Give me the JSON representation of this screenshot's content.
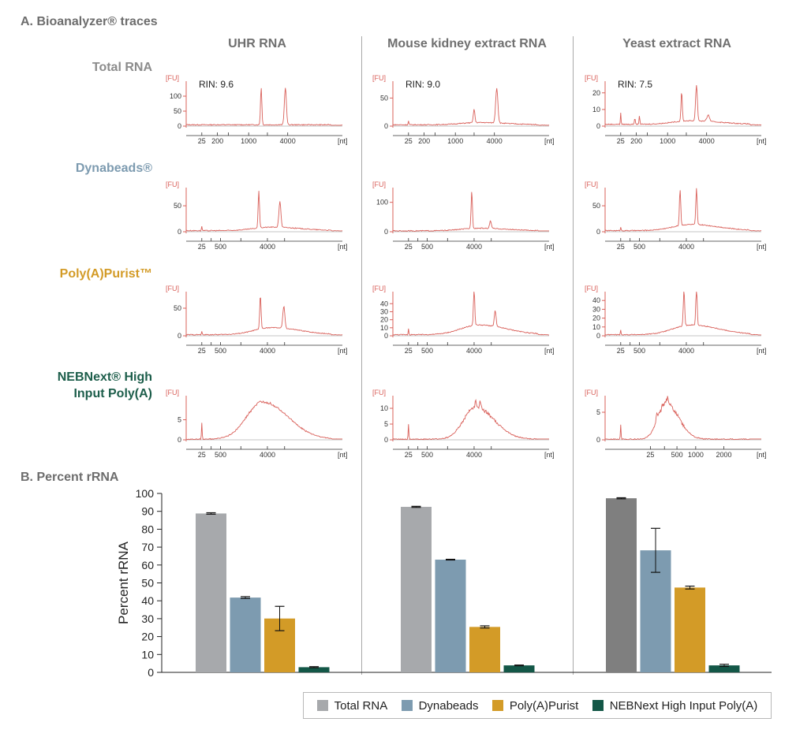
{
  "section_a_title": "A. Bioanalyzer® traces",
  "section_b_title": "B. Percent rRNA",
  "columns": [
    "UHR RNA",
    "Mouse kidney extract RNA",
    "Yeast extract RNA"
  ],
  "rows": [
    {
      "label": "Total RNA",
      "color": "#8c8c8c"
    },
    {
      "label": "Dynabeads®",
      "color": "#7d9bb0"
    },
    {
      "label": "Poly(A)Purist™",
      "color": "#d39b27"
    },
    {
      "label_lines": [
        "NEBNext® High",
        "Input Poly(A)"
      ],
      "color": "#1d5e4b"
    }
  ],
  "chart_data": [
    {
      "type": "line",
      "panel": "A",
      "ylabel_unit": "[FU]",
      "xlabel_unit": "[nt]",
      "trace_color": "#d9605a",
      "traces": [
        {
          "row": 0,
          "col": 0,
          "rin": "RIN: 9.6",
          "yticks": [
            0,
            50,
            100
          ],
          "ymax": 150,
          "xticks": [
            "25",
            "200",
            "",
            "1000",
            "",
            "4000"
          ],
          "xtick_pos": [
            0.1,
            0.2,
            0.27,
            0.4,
            0.52,
            0.65
          ],
          "peaks": [
            {
              "x": 0.48,
              "h": 0.83,
              "w": 0.006
            },
            {
              "x": 0.635,
              "h": 0.83,
              "w": 0.009
            }
          ],
          "baseline": 0.06,
          "hump": 0
        },
        {
          "row": 0,
          "col": 1,
          "rin": "RIN: 9.0",
          "yticks": [
            0,
            50
          ],
          "ymax": 80,
          "xticks": [
            "25",
            "200",
            "",
            "1000",
            "",
            "4000"
          ],
          "xtick_pos": [
            0.1,
            0.2,
            0.27,
            0.4,
            0.52,
            0.65
          ],
          "peaks": [
            {
              "x": 0.1,
              "h": 0.09,
              "w": 0.003
            },
            {
              "x": 0.52,
              "h": 0.3,
              "w": 0.007
            },
            {
              "x": 0.665,
              "h": 0.78,
              "w": 0.01
            }
          ],
          "baseline": 0.06,
          "hump": 0.05
        },
        {
          "row": 0,
          "col": 2,
          "rin": "RIN: 7.5",
          "yticks": [
            0,
            10,
            20
          ],
          "ymax": 27,
          "xticks": [
            "25",
            "200",
            "",
            "1000",
            "",
            "4000"
          ],
          "xtick_pos": [
            0.1,
            0.2,
            0.27,
            0.4,
            0.52,
            0.65
          ],
          "peaks": [
            {
              "x": 0.1,
              "h": 0.25,
              "w": 0.003
            },
            {
              "x": 0.19,
              "h": 0.14,
              "w": 0.004
            },
            {
              "x": 0.22,
              "h": 0.18,
              "w": 0.004
            },
            {
              "x": 0.49,
              "h": 0.65,
              "w": 0.006
            },
            {
              "x": 0.585,
              "h": 0.8,
              "w": 0.008
            },
            {
              "x": 0.66,
              "h": 0.14,
              "w": 0.012
            }
          ],
          "baseline": 0.08,
          "hump": 0.08
        },
        {
          "row": 1,
          "col": 0,
          "rin": "",
          "yticks": [
            0,
            50
          ],
          "ymax": 85,
          "xticks": [
            "25",
            "",
            "500",
            "",
            "4000",
            ""
          ],
          "xtick_pos": [
            0.1,
            0.16,
            0.22,
            0.35,
            0.52,
            0.63
          ],
          "peaks": [
            {
              "x": 0.1,
              "h": 0.1,
              "w": 0.003
            },
            {
              "x": 0.465,
              "h": 0.85,
              "w": 0.006
            },
            {
              "x": 0.6,
              "h": 0.58,
              "w": 0.009
            }
          ],
          "baseline": 0.05,
          "hump": 0.08
        },
        {
          "row": 1,
          "col": 1,
          "rin": "",
          "yticks": [
            0,
            100
          ],
          "ymax": 150,
          "xticks": [
            "25",
            "",
            "500",
            "",
            "4000",
            ""
          ],
          "xtick_pos": [
            0.1,
            0.16,
            0.22,
            0.35,
            0.52,
            0.63
          ],
          "peaks": [
            {
              "x": 0.505,
              "h": 0.85,
              "w": 0.006
            },
            {
              "x": 0.625,
              "h": 0.17,
              "w": 0.008
            }
          ],
          "baseline": 0.04,
          "hump": 0.06
        },
        {
          "row": 1,
          "col": 2,
          "rin": "",
          "yticks": [
            0,
            50
          ],
          "ymax": 85,
          "xticks": [
            "25",
            "",
            "500",
            "",
            "4000",
            ""
          ],
          "xtick_pos": [
            0.1,
            0.16,
            0.22,
            0.35,
            0.52,
            0.63
          ],
          "peaks": [
            {
              "x": 0.1,
              "h": 0.08,
              "w": 0.003
            },
            {
              "x": 0.48,
              "h": 0.82,
              "w": 0.006
            },
            {
              "x": 0.585,
              "h": 0.82,
              "w": 0.006
            }
          ],
          "baseline": 0.05,
          "hump": 0.14
        },
        {
          "row": 2,
          "col": 0,
          "rin": "",
          "yticks": [
            0,
            50
          ],
          "ymax": 80,
          "xticks": [
            "25",
            "",
            "500",
            "",
            "4000",
            ""
          ],
          "xtick_pos": [
            0.1,
            0.16,
            0.22,
            0.35,
            0.52,
            0.63
          ],
          "peaks": [
            {
              "x": 0.1,
              "h": 0.07,
              "w": 0.003
            },
            {
              "x": 0.475,
              "h": 0.78,
              "w": 0.006
            },
            {
              "x": 0.625,
              "h": 0.5,
              "w": 0.009
            }
          ],
          "baseline": 0.05,
          "hump": 0.16
        },
        {
          "row": 2,
          "col": 1,
          "rin": "",
          "yticks": [
            0,
            10,
            20,
            30,
            40
          ],
          "ymax": 55,
          "xticks": [
            "25",
            "",
            "500",
            "",
            "4000",
            ""
          ],
          "xtick_pos": [
            0.1,
            0.16,
            0.22,
            0.35,
            0.52,
            0.63
          ],
          "peaks": [
            {
              "x": 0.1,
              "h": 0.14,
              "w": 0.003
            },
            {
              "x": 0.52,
              "h": 0.82,
              "w": 0.006
            },
            {
              "x": 0.655,
              "h": 0.36,
              "w": 0.008
            }
          ],
          "baseline": 0.05,
          "hump": 0.22
        },
        {
          "row": 2,
          "col": 2,
          "rin": "",
          "yticks": [
            0,
            10,
            20,
            30,
            40
          ],
          "ymax": 50,
          "xticks": [
            "25",
            "",
            "500",
            "",
            "4000",
            ""
          ],
          "xtick_pos": [
            0.1,
            0.16,
            0.22,
            0.35,
            0.52,
            0.63
          ],
          "peaks": [
            {
              "x": 0.1,
              "h": 0.1,
              "w": 0.003
            },
            {
              "x": 0.505,
              "h": 0.82,
              "w": 0.006
            },
            {
              "x": 0.585,
              "h": 0.9,
              "w": 0.006
            }
          ],
          "baseline": 0.05,
          "hump": 0.22
        },
        {
          "row": 3,
          "col": 0,
          "rin": "",
          "yticks": [
            0,
            5
          ],
          "ymax": 11,
          "xticks": [
            "25",
            "",
            "500",
            "",
            "4000",
            ""
          ],
          "xtick_pos": [
            0.1,
            0.16,
            0.22,
            0.35,
            0.52,
            0.63
          ],
          "peaks": [
            {
              "x": 0.1,
              "h": 0.38,
              "w": 0.003
            }
          ],
          "baseline": 0.03,
          "hump": 0.85,
          "hump_center": 0.49,
          "hump_width": 0.16,
          "noise": 0.05
        },
        {
          "row": 3,
          "col": 1,
          "rin": "",
          "yticks": [
            0,
            5,
            10
          ],
          "ymax": 14,
          "xticks": [
            "25",
            "",
            "500",
            "",
            "4000",
            ""
          ],
          "xtick_pos": [
            0.1,
            0.16,
            0.22,
            0.35,
            0.52,
            0.63
          ],
          "peaks": [
            {
              "x": 0.1,
              "h": 0.33,
              "w": 0.003
            },
            {
              "x": 0.53,
              "h": 0.18,
              "w": 0.006
            },
            {
              "x": 0.56,
              "h": 0.15,
              "w": 0.006
            }
          ],
          "baseline": 0.03,
          "hump": 0.72,
          "hump_center": 0.53,
          "hump_width": 0.12,
          "noise": 0.09
        },
        {
          "row": 3,
          "col": 2,
          "rin": "",
          "yticks": [
            0,
            5
          ],
          "ymax": 8,
          "xticks": [
            "25",
            "",
            "500",
            "1000",
            "2000"
          ],
          "xtick_pos": [
            0.29,
            0.38,
            0.46,
            0.58,
            0.76
          ],
          "peaks": [
            {
              "x": 0.1,
              "h": 0.32,
              "w": 0.003
            },
            {
              "x": 0.33,
              "h": 0.2,
              "w": 0.006
            },
            {
              "x": 0.4,
              "h": 0.15,
              "w": 0.006
            }
          ],
          "baseline": 0.03,
          "hump": 0.82,
          "hump_center": 0.39,
          "hump_width": 0.08,
          "noise": 0.13
        }
      ]
    },
    {
      "type": "bar",
      "panel": "B",
      "ylabel": "Percent rRNA",
      "ylim": [
        0,
        100
      ],
      "yticks": [
        0,
        10,
        20,
        30,
        40,
        50,
        60,
        70,
        80,
        90,
        100
      ],
      "categories": [
        "UHR RNA",
        "Mouse kidney extract RNA",
        "Yeast extract RNA"
      ],
      "series": [
        {
          "name": "Total RNA",
          "color": "#a7a9ac",
          "values": [
            88.8,
            92.5,
            97.3
          ],
          "errors": [
            0.4,
            0.3,
            0.3
          ],
          "colors": [
            "#a7a9ac",
            "#a7a9ac",
            "#7f7f7f"
          ]
        },
        {
          "name": "Dynabeads",
          "color": "#7d9bb0",
          "values": [
            41.8,
            63.0,
            68.2
          ],
          "errors": [
            0.5,
            0.2,
            12.3
          ]
        },
        {
          "name": "Poly(A)Purist",
          "color": "#d39b27",
          "values": [
            30.1,
            25.4,
            47.4
          ],
          "errors": [
            6.8,
            0.6,
            0.8
          ]
        },
        {
          "name": "NEBNext High Input Poly(A)",
          "color": "#135747",
          "values": [
            2.9,
            3.9,
            3.9
          ],
          "errors": [
            0.3,
            0.2,
            0.6
          ]
        }
      ],
      "legend": "bottom-right"
    }
  ]
}
